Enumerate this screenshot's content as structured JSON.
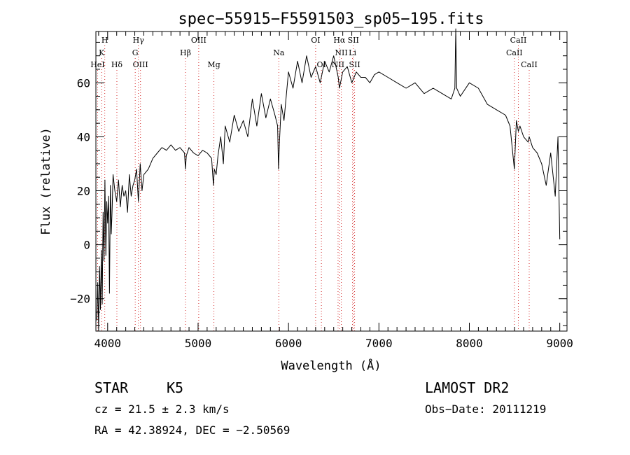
{
  "chart_data": {
    "type": "line",
    "title": "spec−55915−F5591503_sp05−195.fits",
    "xlabel": "Wavelength (Å)",
    "ylabel": "Flux (relative)",
    "xlim": [
      3870,
      9080
    ],
    "ylim": [
      -32,
      79
    ],
    "x_ticks": [
      {
        "value": 4000,
        "label": "4000"
      },
      {
        "value": 5000,
        "label": "5000"
      },
      {
        "value": 6000,
        "label": "6000"
      },
      {
        "value": 7000,
        "label": "7000"
      },
      {
        "value": 8000,
        "label": "8000"
      },
      {
        "value": 9000,
        "label": "9000"
      }
    ],
    "y_ticks": [
      {
        "value": -20,
        "label": "−20"
      },
      {
        "value": 0,
        "label": "0"
      },
      {
        "value": 20,
        "label": "20"
      },
      {
        "value": 40,
        "label": "40"
      },
      {
        "value": 60,
        "label": "60"
      }
    ],
    "series": [
      {
        "x": [
          3880,
          3890,
          3900,
          3910,
          3920,
          3930,
          3940,
          3950,
          3960,
          3970,
          3980,
          3990,
          4000,
          4010,
          4020,
          4030,
          4040,
          4050,
          4060,
          4080,
          4100,
          4120,
          4140,
          4160,
          4180,
          4200,
          4220,
          4240,
          4260,
          4280,
          4300,
          4320,
          4340,
          4360,
          4380,
          4400,
          4450,
          4500,
          4550,
          4600,
          4650,
          4700,
          4750,
          4800,
          4850,
          4860,
          4870,
          4900,
          4950,
          5000,
          5050,
          5100,
          5150,
          5170,
          5180,
          5200,
          5220,
          5250,
          5280,
          5300,
          5350,
          5400,
          5450,
          5500,
          5550,
          5600,
          5650,
          5700,
          5750,
          5800,
          5850,
          5880,
          5890,
          5900,
          5920,
          5950,
          6000,
          6050,
          6100,
          6150,
          6200,
          6250,
          6300,
          6350,
          6400,
          6450,
          6500,
          6550,
          6563,
          6600,
          6650,
          6700,
          6750,
          6800,
          6850,
          6900,
          6950,
          7000,
          7100,
          7200,
          7300,
          7400,
          7500,
          7600,
          7700,
          7800,
          7840,
          7850,
          7860,
          7900,
          8000,
          8100,
          8200,
          8300,
          8400,
          8450,
          8498,
          8520,
          8542,
          8560,
          8600,
          8650,
          8662,
          8700,
          8750,
          8800,
          8850,
          8900,
          8950,
          8980,
          9000
        ],
        "y": [
          -28,
          -14,
          -31,
          -8,
          -24,
          -2,
          -22,
          12,
          -6,
          24,
          -4,
          16,
          8,
          18,
          -18,
          22,
          4,
          14,
          26,
          20,
          16,
          24,
          14,
          22,
          18,
          20,
          12,
          26,
          18,
          22,
          24,
          28,
          16,
          30,
          20,
          26,
          28,
          32,
          34,
          36,
          35,
          37,
          35,
          36,
          34,
          28,
          33,
          36,
          34,
          33,
          35,
          34,
          32,
          22,
          28,
          26,
          33,
          40,
          30,
          44,
          38,
          48,
          42,
          46,
          40,
          54,
          44,
          56,
          47,
          54,
          48,
          44,
          28,
          38,
          52,
          46,
          64,
          58,
          68,
          60,
          70,
          62,
          66,
          60,
          68,
          64,
          70,
          62,
          58,
          64,
          66,
          60,
          64,
          62,
          62,
          60,
          63,
          64,
          62,
          60,
          58,
          60,
          56,
          58,
          56,
          54,
          58,
          80,
          58,
          55,
          60,
          58,
          52,
          50,
          48,
          44,
          28,
          46,
          42,
          44,
          40,
          38,
          40,
          36,
          34,
          30,
          22,
          34,
          18,
          40,
          2
        ]
      }
    ],
    "line_markers": [
      {
        "name": "H",
        "x": 3968,
        "row": 1
      },
      {
        "name": "K",
        "x": 3934,
        "row": 2
      },
      {
        "name": "HeI",
        "x": 3889,
        "row": 3
      },
      {
        "name": "Hδ",
        "x": 4102,
        "row": 3
      },
      {
        "name": "Hγ",
        "x": 4340,
        "row": 1
      },
      {
        "name": "G",
        "x": 4305,
        "row": 2
      },
      {
        "name": "OIII",
        "x": 4363,
        "row": 3
      },
      {
        "name": "OIII",
        "x": 5007,
        "row": 1
      },
      {
        "name": "Hβ",
        "x": 4861,
        "row": 2
      },
      {
        "name": "Mg",
        "x": 5175,
        "row": 3
      },
      {
        "name": "Na",
        "x": 5893,
        "row": 2
      },
      {
        "name": "OI",
        "x": 6300,
        "row": 1
      },
      {
        "name": "OI",
        "x": 6364,
        "row": 3
      },
      {
        "name": "Hα",
        "x": 6563,
        "row": 1
      },
      {
        "name": "SII",
        "x": 6717,
        "row": 1
      },
      {
        "name": "NII",
        "x": 6584,
        "row": 2
      },
      {
        "name": "Li",
        "x": 6708,
        "row": 2
      },
      {
        "name": "NII",
        "x": 6548,
        "row": 3
      },
      {
        "name": "SII",
        "x": 6731,
        "row": 3
      },
      {
        "name": "CaII",
        "x": 8542,
        "row": 1
      },
      {
        "name": "CaII",
        "x": 8498,
        "row": 2
      },
      {
        "name": "CaII",
        "x": 8662,
        "row": 3
      }
    ],
    "marker_color": "#d42a2a",
    "line_color": "#000000",
    "grid": false
  },
  "info": {
    "class": "STAR",
    "subclass": "K5",
    "survey": "LAMOST DR2",
    "cz": "cz = 21.5 ± 2.3 km/s",
    "obs_date": "Obs−Date: 20111219",
    "coords": "RA =  42.38924, DEC =  −2.50569"
  }
}
